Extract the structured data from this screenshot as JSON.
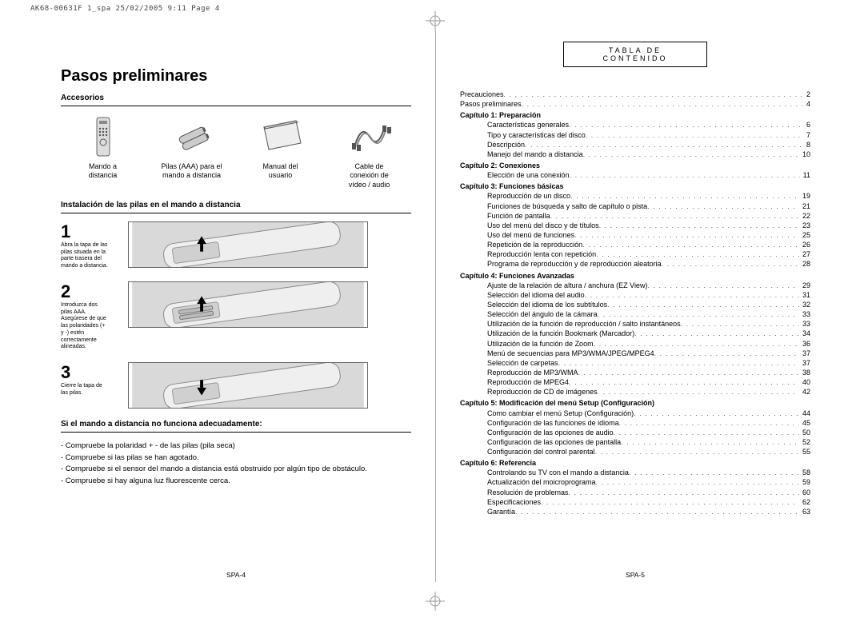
{
  "print_mark": "AK68-00631F 1_spa  25/02/2005  9:11  Page 4",
  "left": {
    "h1": "Pasos preliminares",
    "accessories_h": "Accesorios",
    "accessories": [
      {
        "label": "Mando a\ndistancia"
      },
      {
        "label": "Pilas (AAA) para el\nmando a distancia"
      },
      {
        "label": "Manual del\nusuario"
      },
      {
        "label": "Cable de\nconexión de\nvídeo / audio"
      }
    ],
    "install_h": "Instalación de las pilas en el mando a distancia",
    "steps": [
      {
        "num": "1",
        "text": "Abra la tapa de las pilas situada en la parte trasera del mando a distancia."
      },
      {
        "num": "2",
        "text": "Introduzca dos pilas AAA. Asegúrese de que las polaridades (+ y -) estén correctamente alineadas."
      },
      {
        "num": "3",
        "text": "Cierre la tapa de las pilas."
      }
    ],
    "trouble_h": "Si el mando a distancia no funciona adecuadamente:",
    "trouble": [
      "- Compruebe la polaridad + - de las pilas (pila seca)",
      "- Compruebe si las pilas se han agotado.",
      "- Compruebe si el sensor del mando a distancia está obstruido por algún tipo de obstáculo.",
      "- Compruebe si hay alguna luz fluorescente cerca."
    ],
    "footer": "SPA-4"
  },
  "right": {
    "toc_title": "TABLA DE CONTENIDO",
    "pre": [
      {
        "label": "Precauciones",
        "page": "2"
      },
      {
        "label": "Pasos preliminares",
        "page": "4"
      }
    ],
    "chapters": [
      {
        "title": "Capítulo 1: Preparación",
        "items": [
          {
            "label": "Características generales",
            "page": "6"
          },
          {
            "label": "Tipo y características del disco",
            "page": "7"
          },
          {
            "label": "Descripción",
            "page": "8"
          },
          {
            "label": "Manejo del mando a distancia",
            "page": "10"
          }
        ]
      },
      {
        "title": "Capítulo 2: Conexiones",
        "items": [
          {
            "label": "Elección de una conexión",
            "page": "11"
          }
        ]
      },
      {
        "title": "Capítulo 3: Funciones básicas",
        "items": [
          {
            "label": "Reproducción de un disco",
            "page": "19"
          },
          {
            "label": "Funciones de búsqueda y salto de capítulo o pista",
            "page": "21"
          },
          {
            "label": "Función de pantalla",
            "page": "22"
          },
          {
            "label": "Uso del menú del disco y de títulos",
            "page": "23"
          },
          {
            "label": "Uso del menú de funciones",
            "page": "25"
          },
          {
            "label": "Repetición de la reproducción",
            "page": "26"
          },
          {
            "label": "Reproducción lenta con repetición",
            "page": "27"
          },
          {
            "label": "Programa de reproducción y de reproducción aleatoria",
            "page": "28"
          }
        ]
      },
      {
        "title": "Capítulo 4: Funciones Avanzadas",
        "items": [
          {
            "label": "Ajuste de la relación de altura / anchura (EZ View)",
            "page": "29"
          },
          {
            "label": "Selección del idioma del audio",
            "page": "31"
          },
          {
            "label": "Selección del idioma de los subtítulos",
            "page": "32"
          },
          {
            "label": "Selección del ángulo de la cámara",
            "page": "33"
          },
          {
            "label": "Utilización de la función de reproducción / salto instantáneos",
            "page": "33"
          },
          {
            "label": "Utilización de la función Bookmark (Marcador)",
            "page": "34"
          },
          {
            "label": "Utilización de la función de Zoom",
            "page": "36"
          },
          {
            "label": "Menú de secuencias para MP3/WMA/JPEG/MPEG4",
            "page": "37"
          },
          {
            "label": "Selección de carpetas",
            "page": "37"
          },
          {
            "label": "Reproducción de MP3/WMA",
            "page": "38"
          },
          {
            "label": "Reproducción de MPEG4",
            "page": "40"
          },
          {
            "label": "Reproducción de CD de imágenes",
            "page": "42"
          }
        ]
      },
      {
        "title": "Capítulo 5: Modificación del menú Setup (Configuración)",
        "items": [
          {
            "label": "Como cambiar el menú Setup (Configuración)",
            "page": "44"
          },
          {
            "label": "Configuración de las funciones de idioma",
            "page": "45"
          },
          {
            "label": "Configuración de las opciones de audio",
            "page": "50"
          },
          {
            "label": "Configuración de las opciones de pantalla",
            "page": "52"
          },
          {
            "label": "Configuración del control parental",
            "page": "55"
          }
        ]
      },
      {
        "title": "Capítulo 6: Referencia",
        "items": [
          {
            "label": "Controlando su TV con el mando a distancia",
            "page": "58"
          },
          {
            "label": "Actualización del moicroprograma",
            "page": "59"
          },
          {
            "label": "Resolución de problemas",
            "page": "60"
          },
          {
            "label": "Especificaciones",
            "page": "62"
          },
          {
            "label": "Garantía",
            "page": "63"
          }
        ]
      }
    ],
    "footer": "SPA-5"
  }
}
